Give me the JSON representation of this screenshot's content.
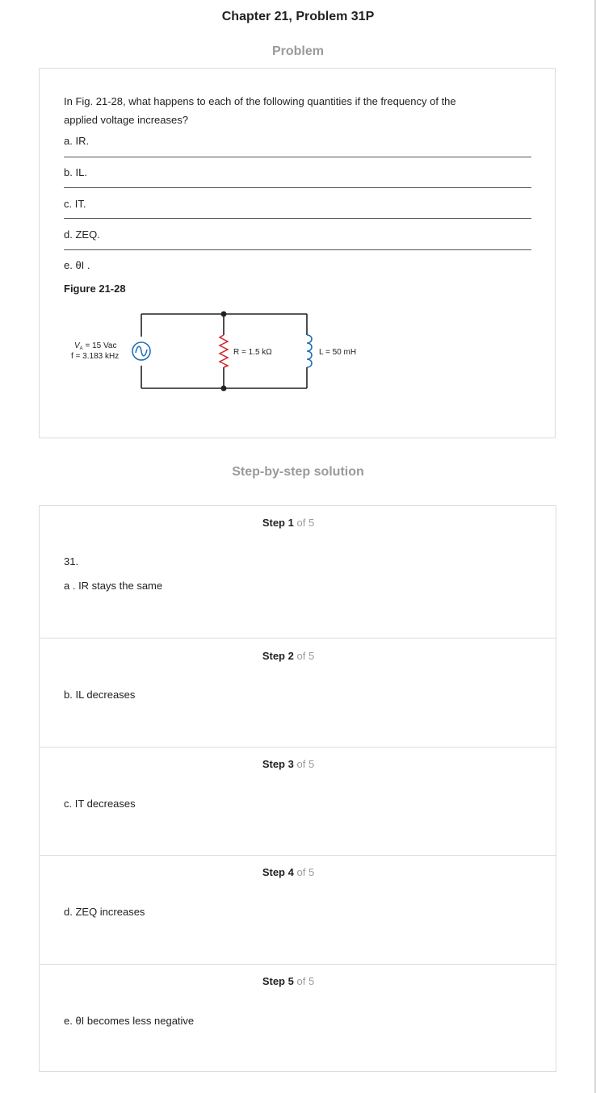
{
  "page": {
    "chapter_title": "Chapter 21, Problem 31P",
    "problem_heading": "Problem",
    "solution_heading": "Step-by-step solution"
  },
  "problem": {
    "question_line1": "In Fig. 21-28, what happens to each of the following quantities if the frequency of the",
    "question_line2": "applied voltage increases?",
    "parts": [
      "a. IR.",
      "b. IL.",
      "c. IT.",
      "d. ZEQ.",
      "e. θI ."
    ],
    "figure_title": "Figure 21-28"
  },
  "circuit": {
    "source_voltage": "V",
    "source_voltage_sub": "A",
    "source_voltage_value": " = 15 Vac",
    "source_frequency": "f = 3.183 kHz",
    "resistor_label": "R = 1.5 kΩ",
    "inductor_label": "L = 50 mH",
    "colors": {
      "wire": "#222222",
      "resistor": "#d0232a",
      "inductor": "#1f6fb5",
      "source": "#1f6fb5"
    }
  },
  "steps": [
    {
      "word": "Step",
      "num": "1",
      "of": "of 5",
      "lines": [
        "31.",
        "a . IR stays the same"
      ]
    },
    {
      "word": "Step",
      "num": "2",
      "of": "of 5",
      "lines": [
        "b. IL decreases"
      ]
    },
    {
      "word": "Step",
      "num": "3",
      "of": "of 5",
      "lines": [
        "c. IT decreases"
      ]
    },
    {
      "word": "Step",
      "num": "4",
      "of": "of 5",
      "lines": [
        "d. ZEQ increases"
      ]
    },
    {
      "word": "Step",
      "num": "5",
      "of": "of 5",
      "lines": [
        "e. θI becomes less negative"
      ]
    }
  ]
}
